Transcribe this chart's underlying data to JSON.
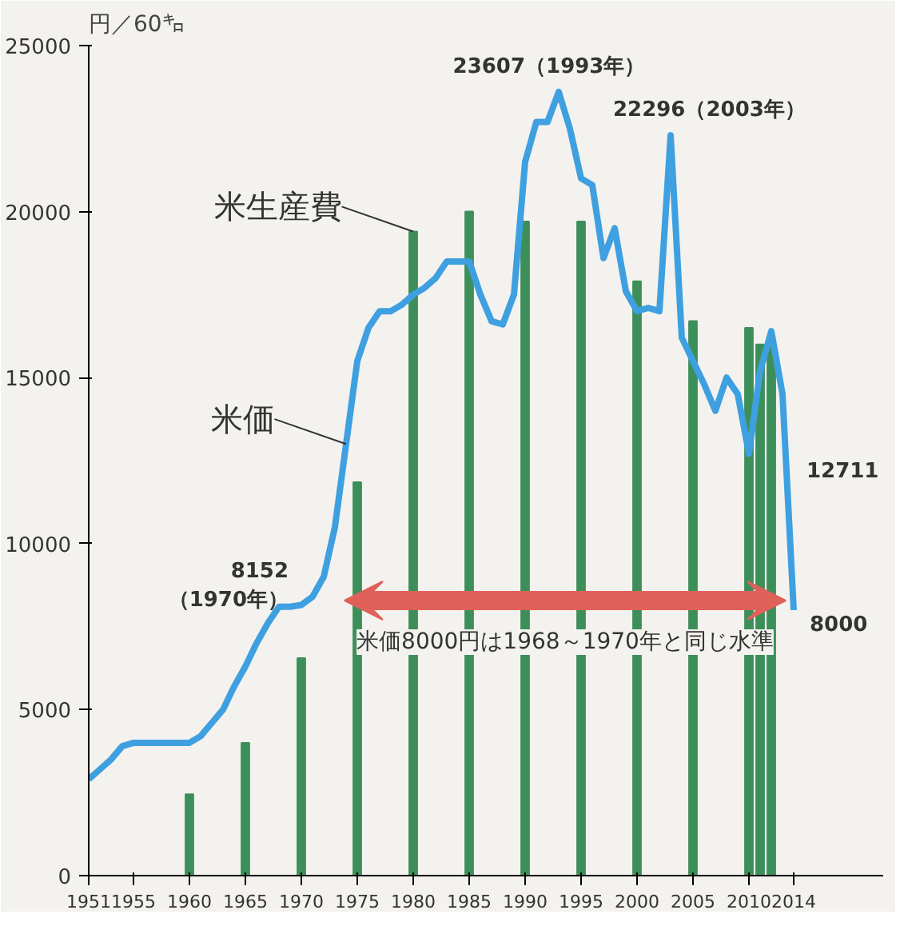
{
  "chart_data": {
    "type": "bar",
    "ylabel": "円／60㌔",
    "x": [
      1960,
      1965,
      1970,
      1975,
      1980,
      1985,
      1990,
      1995,
      2000,
      2005,
      2010,
      2011,
      2012
    ],
    "series": [
      {
        "name": "米生産費",
        "color": "#3d8f5a",
        "values": [
          2450,
          4000,
          6550,
          11850,
          19400,
          20000,
          19700,
          19700,
          17900,
          16700,
          16500,
          16000,
          16100
        ]
      },
      {
        "name": "米価",
        "type": "line",
        "color": "#3ea0e0",
        "x": [
          1951,
          1952,
          1953,
          1954,
          1955,
          1956,
          1957,
          1958,
          1959,
          1960,
          1961,
          1962,
          1963,
          1964,
          1965,
          1966,
          1967,
          1968,
          1969,
          1970,
          1971,
          1972,
          1973,
          1974,
          1975,
          1976,
          1977,
          1978,
          1979,
          1980,
          1981,
          1982,
          1983,
          1984,
          1985,
          1986,
          1987,
          1988,
          1989,
          1990,
          1991,
          1992,
          1993,
          1994,
          1995,
          1996,
          1997,
          1998,
          1999,
          2000,
          2001,
          2002,
          2003,
          2004,
          2005,
          2006,
          2007,
          2008,
          2009,
          2010,
          2011,
          2012,
          2013,
          2014
        ],
        "values": [
          2900,
          3200,
          3500,
          3900,
          4000,
          4000,
          4000,
          4000,
          4000,
          4000,
          4200,
          4600,
          5000,
          5700,
          6300,
          7000,
          7600,
          8100,
          8100,
          8152,
          8400,
          9000,
          10500,
          13000,
          15500,
          16500,
          17000,
          17000,
          17200,
          17500,
          17700,
          18000,
          18500,
          18500,
          18500,
          17500,
          16700,
          16600,
          17500,
          21500,
          22700,
          22700,
          23607,
          22500,
          21000,
          20800,
          18600,
          19500,
          17600,
          17000,
          17100,
          17000,
          22296,
          16200,
          15500,
          14800,
          14000,
          15000,
          14500,
          12711,
          15200,
          16400,
          14500,
          8000
        ]
      }
    ],
    "xlim": [
      1951,
      2022
    ],
    "ylim": [
      0,
      25000
    ],
    "xticks": [
      1951,
      1955,
      1960,
      1965,
      1970,
      1975,
      1980,
      1985,
      1990,
      1995,
      2000,
      2005,
      2010,
      2014
    ],
    "yticks": [
      0,
      5000,
      10000,
      15000,
      20000,
      25000
    ],
    "annotations": [
      {
        "text": "23607（1993年）",
        "x": 1993,
        "y": 23607
      },
      {
        "text": "22296（2003年）",
        "x": 2003,
        "y": 22296
      },
      {
        "text": "8152\n（1970年）",
        "x": 1970,
        "y": 8152
      },
      {
        "text": "12711",
        "x": 2010,
        "y": 12711
      },
      {
        "text": "8000",
        "x": 2014,
        "y": 8000
      },
      "米価8000円は1968～1970年と同じ水準"
    ],
    "grid": false
  }
}
